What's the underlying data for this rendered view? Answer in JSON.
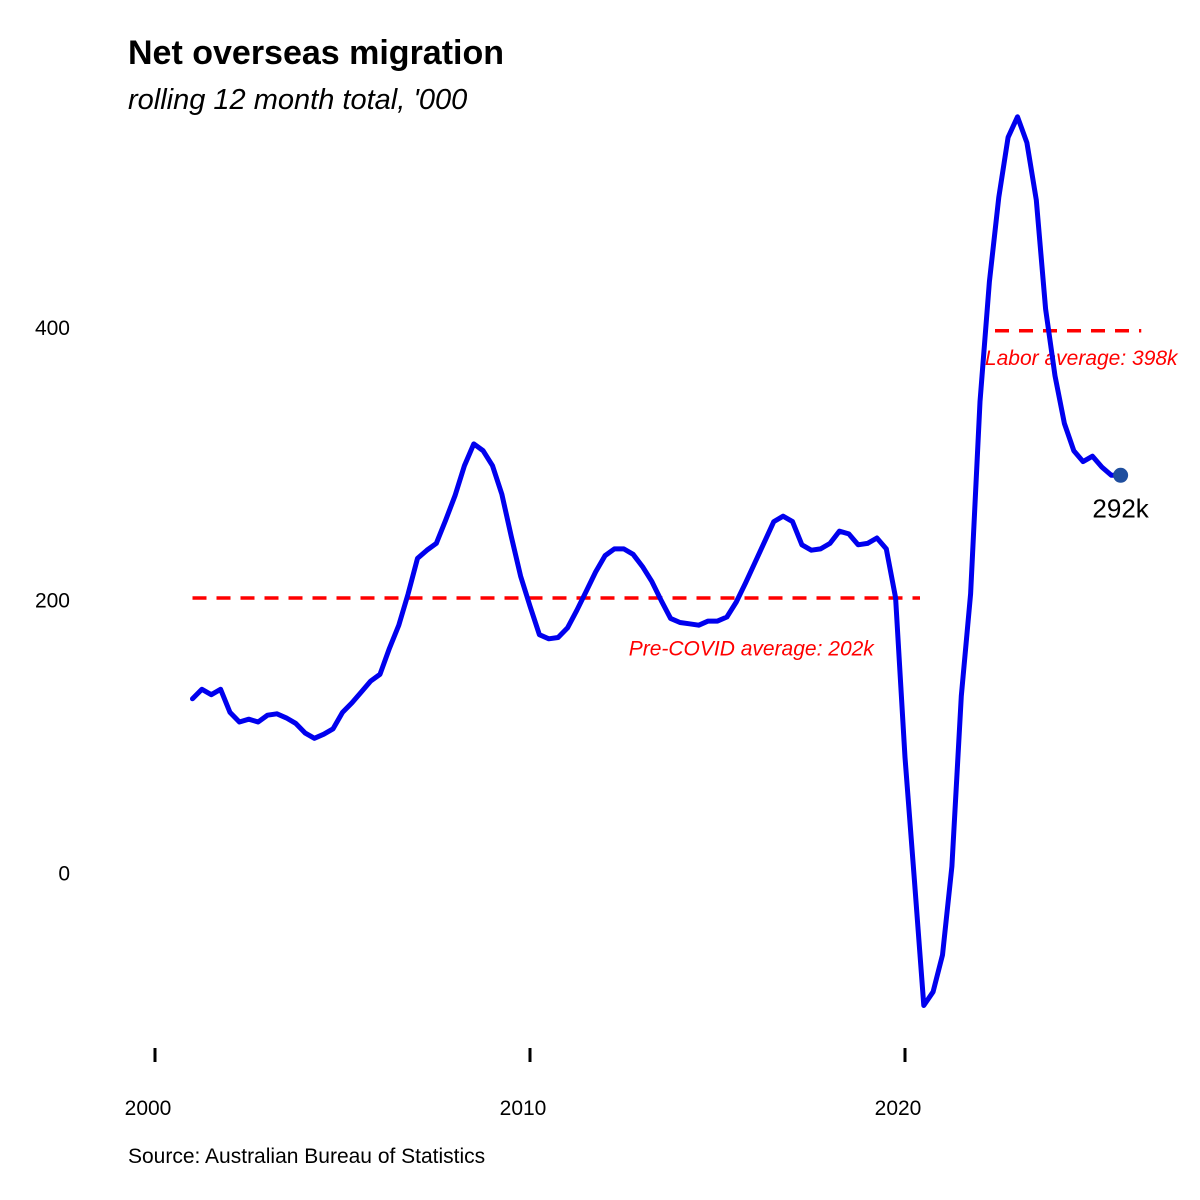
{
  "chart_data": {
    "type": "line",
    "title": "Net overseas migration",
    "subtitle": "rolling 12 month total, '000",
    "source": "Source: Australian Bureau of Statistics",
    "xlabel": "",
    "ylabel": "",
    "xlim": [
      1999.6,
      2026.8
    ],
    "ylim": [
      -115,
      560
    ],
    "x_ticks": [
      2000,
      2010,
      2020
    ],
    "y_ticks": [
      0,
      200,
      400
    ],
    "grid": false,
    "legend": "none",
    "series": [
      {
        "color": "#0000ee",
        "x": [
          2001.0,
          2001.25,
          2001.5,
          2001.75,
          2002.0,
          2002.25,
          2002.5,
          2002.75,
          2003.0,
          2003.25,
          2003.5,
          2003.75,
          2004.0,
          2004.25,
          2004.5,
          2004.75,
          2005.0,
          2005.25,
          2005.5,
          2005.75,
          2006.0,
          2006.25,
          2006.5,
          2006.75,
          2007.0,
          2007.25,
          2007.5,
          2007.75,
          2008.0,
          2008.25,
          2008.5,
          2008.75,
          2009.0,
          2009.25,
          2009.5,
          2009.75,
          2010.0,
          2010.25,
          2010.5,
          2010.75,
          2011.0,
          2011.25,
          2011.5,
          2011.75,
          2012.0,
          2012.25,
          2012.5,
          2012.75,
          2013.0,
          2013.25,
          2013.5,
          2013.75,
          2014.0,
          2014.25,
          2014.5,
          2014.75,
          2015.0,
          2015.25,
          2015.5,
          2015.75,
          2016.0,
          2016.25,
          2016.5,
          2016.75,
          2017.0,
          2017.25,
          2017.5,
          2017.75,
          2018.0,
          2018.25,
          2018.5,
          2018.75,
          2019.0,
          2019.25,
          2019.5,
          2019.75,
          2020.0,
          2020.25,
          2020.5,
          2020.75,
          2021.0,
          2021.25,
          2021.5,
          2021.75,
          2022.0,
          2022.25,
          2022.5,
          2022.75,
          2023.0,
          2023.25,
          2023.5,
          2023.75,
          2024.0,
          2024.25,
          2024.5,
          2024.75,
          2025.0,
          2025.25,
          2025.5,
          2025.75
        ],
        "y": [
          128,
          135,
          131,
          135,
          118,
          111,
          113,
          111,
          116,
          117,
          114,
          110,
          103,
          99,
          102,
          106,
          118,
          125,
          133,
          141,
          146,
          165,
          182,
          205,
          231,
          237,
          242,
          259,
          277,
          299,
          315,
          310,
          299,
          278,
          247,
          218,
          196,
          175,
          172,
          173,
          180,
          193,
          207,
          221,
          233,
          238,
          238,
          234,
          225,
          214,
          200,
          187,
          184,
          183,
          182,
          185,
          185,
          188,
          199,
          213,
          228,
          243,
          258,
          262,
          258,
          241,
          237,
          238,
          242,
          251,
          249,
          241,
          242,
          246,
          238,
          202,
          85,
          -5,
          -97,
          -87,
          -60,
          5,
          130,
          205,
          346,
          434,
          496,
          540,
          555,
          536,
          494,
          414,
          365,
          330,
          310,
          302,
          306,
          298,
          292,
          292
        ]
      }
    ],
    "reference_lines": [
      {
        "y": 202,
        "x_start": 2001.0,
        "x_end": 2020.4,
        "label": "Pre-COVID average: 202k",
        "label_x": 2015.9,
        "label_y": 165,
        "color": "#ff0000"
      },
      {
        "y": 398,
        "x_start": 2022.4,
        "x_end": 2026.3,
        "label": "Labor average: 398k",
        "label_x": 2024.7,
        "label_y": 378,
        "color": "#ff0000"
      }
    ],
    "end_point": {
      "x": 2025.75,
      "y": 292,
      "label": "292k",
      "color": "#1f4e9e"
    }
  }
}
